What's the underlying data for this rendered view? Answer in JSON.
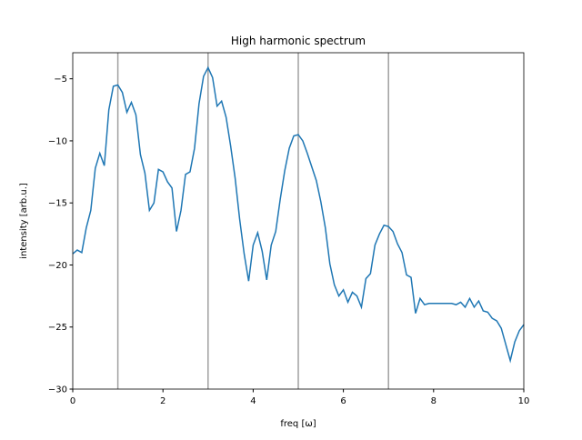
{
  "chart_data": {
    "type": "line",
    "title": "High harmonic spectrum",
    "xlabel": "freq [ω]",
    "ylabel": "intensity [arb.u.]",
    "xlim": [
      0,
      10
    ],
    "ylim": [
      -30,
      -2.9
    ],
    "xticks": [
      0,
      2,
      4,
      6,
      8,
      10
    ],
    "yticks": [
      {
        "value": -30,
        "label": "−30"
      },
      {
        "value": -25,
        "label": "−25"
      },
      {
        "value": -20,
        "label": "−20"
      },
      {
        "value": -15,
        "label": "−15"
      },
      {
        "value": -10,
        "label": "−10"
      },
      {
        "value": -5,
        "label": "−5"
      }
    ],
    "vlines": [
      1,
      3,
      5,
      7
    ],
    "vline_color": "#a0a0a0",
    "x": [
      0,
      0.1,
      0.2,
      0.3,
      0.4,
      0.5,
      0.6,
      0.7,
      0.8,
      0.9,
      1,
      1.1,
      1.2,
      1.3,
      1.4,
      1.5,
      1.6,
      1.7,
      1.8,
      1.9,
      2,
      2.1,
      2.2,
      2.3,
      2.4,
      2.5,
      2.6,
      2.7,
      2.8,
      2.9,
      3,
      3.1,
      3.2,
      3.3,
      3.4,
      3.5,
      3.6,
      3.7,
      3.8,
      3.9,
      4,
      4.1,
      4.2,
      4.3,
      4.4,
      4.5,
      4.6,
      4.7,
      4.8,
      4.9,
      5,
      5.1,
      5.2,
      5.3,
      5.4,
      5.5,
      5.6,
      5.7,
      5.8,
      5.9,
      6,
      6.1,
      6.2,
      6.3,
      6.4,
      6.5,
      6.6,
      6.7,
      6.8,
      6.9,
      7,
      7.1,
      7.2,
      7.3,
      7.4,
      7.5,
      7.6,
      7.7,
      7.8,
      7.9,
      8,
      8.1,
      8.2,
      8.3,
      8.4,
      8.5,
      8.6,
      8.7,
      8.8,
      8.9,
      9,
      9.1,
      9.2,
      9.3,
      9.4,
      9.5,
      9.6,
      9.7,
      9.8,
      9.9,
      10
    ],
    "series": [
      {
        "color": "#1f77b4",
        "values": [
          -19.1,
          -18.8,
          -19.0,
          -17.0,
          -15.6,
          -12.2,
          -11.0,
          -12.0,
          -7.5,
          -5.6,
          -5.5,
          -6.1,
          -7.7,
          -6.9,
          -7.9,
          -11.1,
          -12.6,
          -15.6,
          -15.0,
          -12.3,
          -12.5,
          -13.3,
          -13.8,
          -17.3,
          -15.6,
          -12.7,
          -12.5,
          -10.6,
          -7.0,
          -4.8,
          -4.1,
          -4.9,
          -7.2,
          -6.8,
          -8.1,
          -10.4,
          -13.0,
          -16.3,
          -19.1,
          -21.3,
          -18.4,
          -17.4,
          -18.9,
          -21.2,
          -18.4,
          -17.3,
          -14.7,
          -12.4,
          -10.6,
          -9.6,
          -9.5,
          -10.0,
          -11.0,
          -12.1,
          -13.2,
          -14.9,
          -17.0,
          -19.9,
          -21.6,
          -22.5,
          -22.0,
          -23.0,
          -22.2,
          -22.5,
          -23.4,
          -21.1,
          -20.7,
          -18.4,
          -17.5,
          -16.8,
          -16.9,
          -17.3,
          -18.3,
          -19.0,
          -20.8,
          -21.0,
          -23.9,
          -22.7,
          -23.2,
          -23.1,
          -23.1,
          -23.1,
          -23.1,
          -23.1,
          -23.1,
          -23.2,
          -23.0,
          -23.4,
          -22.7,
          -23.4,
          -22.9,
          -23.7,
          -23.8,
          -24.3,
          -24.5,
          -25.1,
          -26.4,
          -27.7,
          -26.2,
          -25.3,
          -24.8
        ]
      }
    ]
  }
}
